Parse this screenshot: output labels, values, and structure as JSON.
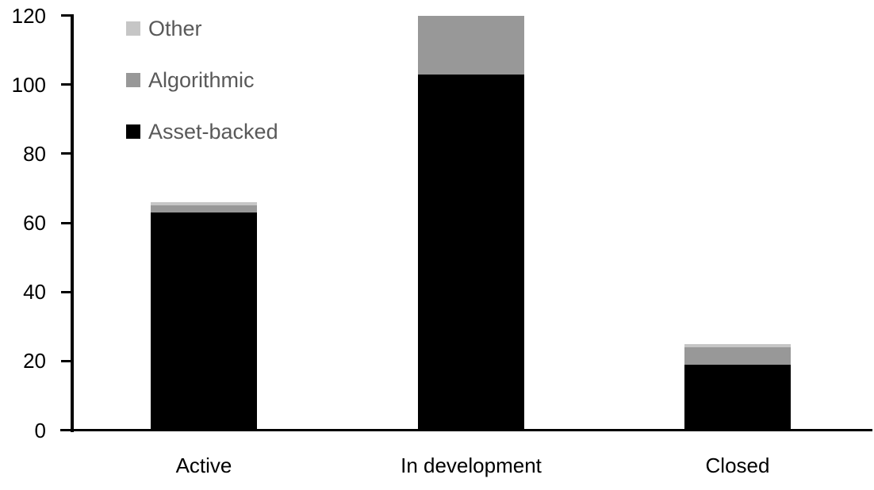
{
  "chart_data": {
    "type": "bar",
    "stacked": true,
    "title": "",
    "xlabel": "",
    "ylabel": "",
    "categories": [
      "Active",
      "In development",
      "Closed"
    ],
    "series": [
      {
        "name": "Asset-backed",
        "color": "#000000",
        "values": [
          63,
          103,
          19
        ]
      },
      {
        "name": "Algorithmic",
        "color": "#989898",
        "values": [
          2,
          17,
          5
        ]
      },
      {
        "name": "Other",
        "color": "#c6c6c6",
        "values": [
          1,
          0,
          1
        ]
      }
    ],
    "stack_totals": [
      66,
      120,
      25
    ],
    "ylim": [
      0,
      120
    ],
    "yticks": [
      0,
      20,
      40,
      60,
      80,
      100,
      120
    ],
    "grid": false,
    "legend_position": "top-left"
  },
  "legend": {
    "items": [
      {
        "label": "Other",
        "color": "#c6c6c6"
      },
      {
        "label": "Algorithmic",
        "color": "#989898"
      },
      {
        "label": "Asset-backed",
        "color": "#000000"
      }
    ],
    "text_color": "#595959"
  },
  "colors": {
    "background": "#ffffff",
    "axis": "#000000",
    "tick_label": "#000000"
  }
}
